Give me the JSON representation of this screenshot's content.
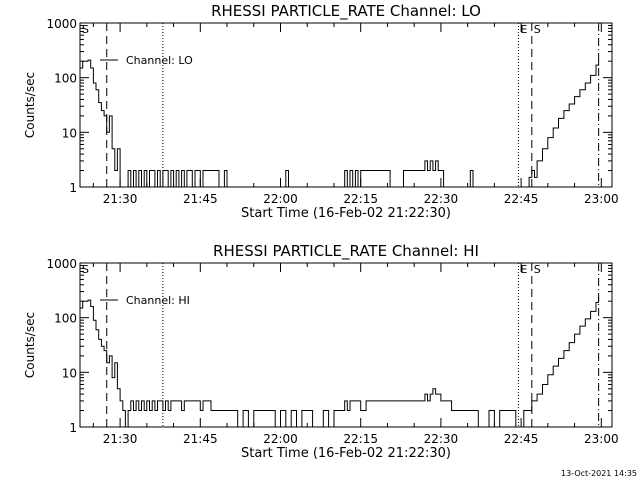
{
  "footer_timestamp": "13-Oct-2021 14:35",
  "chart_data": [
    {
      "type": "line",
      "title": "RHESSI PARTICLE_RATE Channel: LO",
      "xlabel": "Start Time (16-Feb-02 21:22:30)",
      "ylabel": "Counts/sec",
      "y_scale": "log",
      "ylim": [
        1,
        1000
      ],
      "xlim": [
        "21:22:30",
        "23:02:00"
      ],
      "x_tick_labels": [
        "21:30",
        "21:45",
        "22:00",
        "22:15",
        "22:30",
        "22:45",
        "23:00"
      ],
      "y_tick_labels": [
        "1",
        "10",
        "100",
        "1000"
      ],
      "legend": {
        "entries": [
          "Channel: LO"
        ],
        "placement": "top-left"
      },
      "markers": [
        {
          "label": "S",
          "time": "21:22:30",
          "style": "solid"
        },
        {
          "label": "",
          "time": "21:27:30",
          "style": "dashed"
        },
        {
          "label": "",
          "time": "21:38:00",
          "style": "dotted"
        },
        {
          "label": "E",
          "time": "22:44:30",
          "style": "dotted"
        },
        {
          "label": "S",
          "time": "22:47:00",
          "style": "dashed"
        },
        {
          "label": "",
          "time": "22:59:30",
          "style": "dash-dot"
        }
      ],
      "series": [
        {
          "values": [
            [
              "21:22:30",
              150
            ],
            [
              "21:23:00",
              200
            ],
            [
              "21:24:00",
              210
            ],
            [
              "21:24:30",
              150
            ],
            [
              "21:25:00",
              80
            ],
            [
              "21:25:30",
              60
            ],
            [
              "21:26:00",
              35
            ],
            [
              "21:26:30",
              25
            ],
            [
              "21:27:00",
              20
            ],
            [
              "21:27:30",
              10
            ],
            [
              "21:28:00",
              20
            ],
            [
              "21:28:30",
              5
            ],
            [
              "21:29:00",
              2
            ],
            [
              "21:29:30",
              5
            ],
            [
              "21:30:00",
              1
            ],
            [
              "21:31:00",
              1
            ],
            [
              "21:31:30",
              2
            ],
            [
              "21:32:00",
              1
            ],
            [
              "21:32:30",
              2
            ],
            [
              "21:33:00",
              1
            ],
            [
              "21:33:30",
              2
            ],
            [
              "21:34:00",
              1
            ],
            [
              "21:34:30",
              2
            ],
            [
              "21:35:00",
              1
            ],
            [
              "21:35:30",
              2
            ],
            [
              "21:36:00",
              2
            ],
            [
              "21:36:30",
              1
            ],
            [
              "21:37:00",
              2
            ],
            [
              "21:37:30",
              1
            ],
            [
              "21:38:00",
              2
            ],
            [
              "21:38:30",
              2
            ],
            [
              "21:39:00",
              1
            ],
            [
              "21:39:30",
              2
            ],
            [
              "21:40:00",
              1
            ],
            [
              "21:40:30",
              2
            ],
            [
              "21:41:00",
              1
            ],
            [
              "21:41:30",
              2
            ],
            [
              "21:42:00",
              1
            ],
            [
              "21:42:30",
              2
            ],
            [
              "21:43:00",
              2
            ],
            [
              "21:43:30",
              1
            ],
            [
              "21:44:00",
              2
            ],
            [
              "21:44:30",
              2
            ],
            [
              "21:45:00",
              1
            ],
            [
              "21:45:30",
              2
            ],
            [
              "21:46:00",
              2
            ],
            [
              "21:46:30",
              2
            ],
            [
              "21:47:00",
              2
            ],
            [
              "21:47:30",
              2
            ],
            [
              "21:48:00",
              2
            ],
            [
              "21:48:30",
              1
            ],
            [
              "21:49:00",
              1
            ],
            [
              "21:49:30",
              2
            ],
            [
              "21:50:00",
              1
            ],
            [
              "21:55:00",
              1
            ],
            [
              "22:00:00",
              1
            ],
            [
              "22:01:00",
              2
            ],
            [
              "22:01:30",
              1
            ],
            [
              "22:05:00",
              1
            ],
            [
              "22:08:00",
              1
            ],
            [
              "22:11:00",
              1
            ],
            [
              "22:12:00",
              2
            ],
            [
              "22:12:30",
              1
            ],
            [
              "22:13:00",
              2
            ],
            [
              "22:13:30",
              1
            ],
            [
              "22:14:00",
              2
            ],
            [
              "22:14:30",
              1
            ],
            [
              "22:15:00",
              2
            ],
            [
              "22:16:00",
              2
            ],
            [
              "22:17:00",
              2
            ],
            [
              "22:18:00",
              2
            ],
            [
              "22:19:00",
              2
            ],
            [
              "22:20:00",
              2
            ],
            [
              "22:20:30",
              1
            ],
            [
              "22:22:00",
              1
            ],
            [
              "22:23:00",
              2
            ],
            [
              "22:24:00",
              2
            ],
            [
              "22:25:00",
              2
            ],
            [
              "22:26:00",
              2
            ],
            [
              "22:27:00",
              3
            ],
            [
              "22:27:30",
              2
            ],
            [
              "22:28:00",
              3
            ],
            [
              "22:28:30",
              2
            ],
            [
              "22:29:00",
              3
            ],
            [
              "22:29:30",
              2
            ],
            [
              "22:30:00",
              2
            ],
            [
              "22:30:30",
              1
            ],
            [
              "22:32:00",
              1
            ],
            [
              "22:35:00",
              1
            ],
            [
              "22:35:30",
              2
            ],
            [
              "22:36:00",
              1
            ],
            [
              "22:40:00",
              1
            ],
            [
              "22:44:00",
              1
            ],
            [
              "22:46:00",
              1
            ],
            [
              "22:46:30",
              1.5
            ],
            [
              "22:47:00",
              2
            ],
            [
              "22:47:30",
              1.5
            ],
            [
              "22:48:00",
              3
            ],
            [
              "22:49:00",
              5
            ],
            [
              "22:50:00",
              8
            ],
            [
              "22:51:00",
              12
            ],
            [
              "22:52:00",
              18
            ],
            [
              "22:53:00",
              25
            ],
            [
              "22:54:00",
              33
            ],
            [
              "22:55:00",
              45
            ],
            [
              "22:56:00",
              60
            ],
            [
              "22:57:00",
              80
            ],
            [
              "22:58:00",
              110
            ],
            [
              "22:59:00",
              170
            ],
            [
              "22:59:30",
              210
            ]
          ]
        }
      ]
    },
    {
      "type": "line",
      "title": "RHESSI PARTICLE_RATE Channel: HI",
      "xlabel": "Start Time (16-Feb-02 21:22:30)",
      "ylabel": "Counts/sec",
      "y_scale": "log",
      "ylim": [
        1,
        1000
      ],
      "xlim": [
        "21:22:30",
        "23:02:00"
      ],
      "x_tick_labels": [
        "21:30",
        "21:45",
        "22:00",
        "22:15",
        "22:30",
        "22:45",
        "23:00"
      ],
      "y_tick_labels": [
        "1",
        "10",
        "100",
        "1000"
      ],
      "legend": {
        "entries": [
          "Channel: HI"
        ],
        "placement": "top-left"
      },
      "markers": [
        {
          "label": "S",
          "time": "21:22:30",
          "style": "solid"
        },
        {
          "label": "",
          "time": "21:27:30",
          "style": "dashed"
        },
        {
          "label": "",
          "time": "21:38:00",
          "style": "dotted"
        },
        {
          "label": "E",
          "time": "22:44:30",
          "style": "dotted"
        },
        {
          "label": "S",
          "time": "22:47:00",
          "style": "dashed"
        },
        {
          "label": "",
          "time": "22:59:30",
          "style": "dash-dot"
        }
      ],
      "series": [
        {
          "values": [
            [
              "21:22:30",
              150
            ],
            [
              "21:23:00",
              200
            ],
            [
              "21:24:00",
              210
            ],
            [
              "21:24:30",
              160
            ],
            [
              "21:25:00",
              90
            ],
            [
              "21:25:30",
              60
            ],
            [
              "21:26:00",
              40
            ],
            [
              "21:26:30",
              30
            ],
            [
              "21:27:00",
              25
            ],
            [
              "21:27:30",
              15
            ],
            [
              "21:28:00",
              20
            ],
            [
              "21:28:30",
              8
            ],
            [
              "21:29:00",
              15
            ],
            [
              "21:29:30",
              5
            ],
            [
              "21:30:00",
              3
            ],
            [
              "21:30:30",
              2
            ],
            [
              "21:31:00",
              1
            ],
            [
              "21:31:30",
              2
            ],
            [
              "21:32:00",
              3
            ],
            [
              "21:32:30",
              2
            ],
            [
              "21:33:00",
              3
            ],
            [
              "21:33:30",
              2
            ],
            [
              "21:34:00",
              3
            ],
            [
              "21:34:30",
              2
            ],
            [
              "21:35:00",
              3
            ],
            [
              "21:35:30",
              2
            ],
            [
              "21:36:00",
              3
            ],
            [
              "21:36:30",
              2
            ],
            [
              "21:37:00",
              3
            ],
            [
              "21:37:30",
              3
            ],
            [
              "21:38:00",
              2
            ],
            [
              "21:38:30",
              3
            ],
            [
              "21:39:00",
              2
            ],
            [
              "21:39:30",
              3
            ],
            [
              "21:40:00",
              3
            ],
            [
              "21:41:00",
              3
            ],
            [
              "21:41:30",
              2
            ],
            [
              "21:42:00",
              3
            ],
            [
              "21:43:00",
              3
            ],
            [
              "21:44:00",
              3
            ],
            [
              "21:45:00",
              2
            ],
            [
              "21:45:30",
              3
            ],
            [
              "21:46:00",
              3
            ],
            [
              "21:47:00",
              2
            ],
            [
              "21:48:00",
              2
            ],
            [
              "21:49:00",
              2
            ],
            [
              "21:50:00",
              2
            ],
            [
              "21:51:00",
              2
            ],
            [
              "21:52:00",
              1
            ],
            [
              "21:53:00",
              2
            ],
            [
              "21:54:00",
              1
            ],
            [
              "21:55:00",
              2
            ],
            [
              "21:56:00",
              2
            ],
            [
              "21:57:00",
              2
            ],
            [
              "21:58:00",
              2
            ],
            [
              "21:59:00",
              1
            ],
            [
              "22:00:00",
              2
            ],
            [
              "22:01:00",
              1
            ],
            [
              "22:02:00",
              2
            ],
            [
              "22:03:00",
              1
            ],
            [
              "22:04:00",
              2
            ],
            [
              "22:05:00",
              2
            ],
            [
              "22:06:00",
              1
            ],
            [
              "22:07:00",
              1
            ],
            [
              "22:08:00",
              2
            ],
            [
              "22:09:00",
              1
            ],
            [
              "22:10:00",
              2
            ],
            [
              "22:11:00",
              2
            ],
            [
              "22:12:00",
              3
            ],
            [
              "22:12:30",
              2
            ],
            [
              "22:13:00",
              3
            ],
            [
              "22:14:00",
              3
            ],
            [
              "22:15:00",
              2
            ],
            [
              "22:16:00",
              3
            ],
            [
              "22:17:00",
              3
            ],
            [
              "22:18:00",
              3
            ],
            [
              "22:19:00",
              3
            ],
            [
              "22:20:00",
              3
            ],
            [
              "22:21:00",
              3
            ],
            [
              "22:22:00",
              3
            ],
            [
              "22:23:00",
              3
            ],
            [
              "22:24:00",
              3
            ],
            [
              "22:25:00",
              3
            ],
            [
              "22:26:00",
              3
            ],
            [
              "22:27:00",
              4
            ],
            [
              "22:27:30",
              3
            ],
            [
              "22:28:00",
              4
            ],
            [
              "22:28:30",
              5
            ],
            [
              "22:29:00",
              4
            ],
            [
              "22:29:30",
              4
            ],
            [
              "22:30:00",
              3
            ],
            [
              "22:31:00",
              3
            ],
            [
              "22:32:00",
              2
            ],
            [
              "22:33:00",
              2
            ],
            [
              "22:34:00",
              2
            ],
            [
              "22:35:00",
              2
            ],
            [
              "22:36:00",
              2
            ],
            [
              "22:37:00",
              1
            ],
            [
              "22:38:00",
              1
            ],
            [
              "22:39:00",
              2
            ],
            [
              "22:40:00",
              1
            ],
            [
              "22:41:00",
              2
            ],
            [
              "22:42:00",
              2
            ],
            [
              "22:43:00",
              2
            ],
            [
              "22:44:00",
              1
            ],
            [
              "22:45:00",
              1
            ],
            [
              "22:45:30",
              2
            ],
            [
              "22:46:00",
              2
            ],
            [
              "22:47:00",
              3
            ],
            [
              "22:48:00",
              4
            ],
            [
              "22:49:00",
              6
            ],
            [
              "22:50:00",
              9
            ],
            [
              "22:51:00",
              13
            ],
            [
              "22:52:00",
              18
            ],
            [
              "22:53:00",
              25
            ],
            [
              "22:54:00",
              35
            ],
            [
              "22:55:00",
              50
            ],
            [
              "22:56:00",
              70
            ],
            [
              "22:57:00",
              95
            ],
            [
              "22:58:00",
              130
            ],
            [
              "22:59:00",
              190
            ],
            [
              "22:59:30",
              240
            ]
          ]
        }
      ]
    }
  ]
}
